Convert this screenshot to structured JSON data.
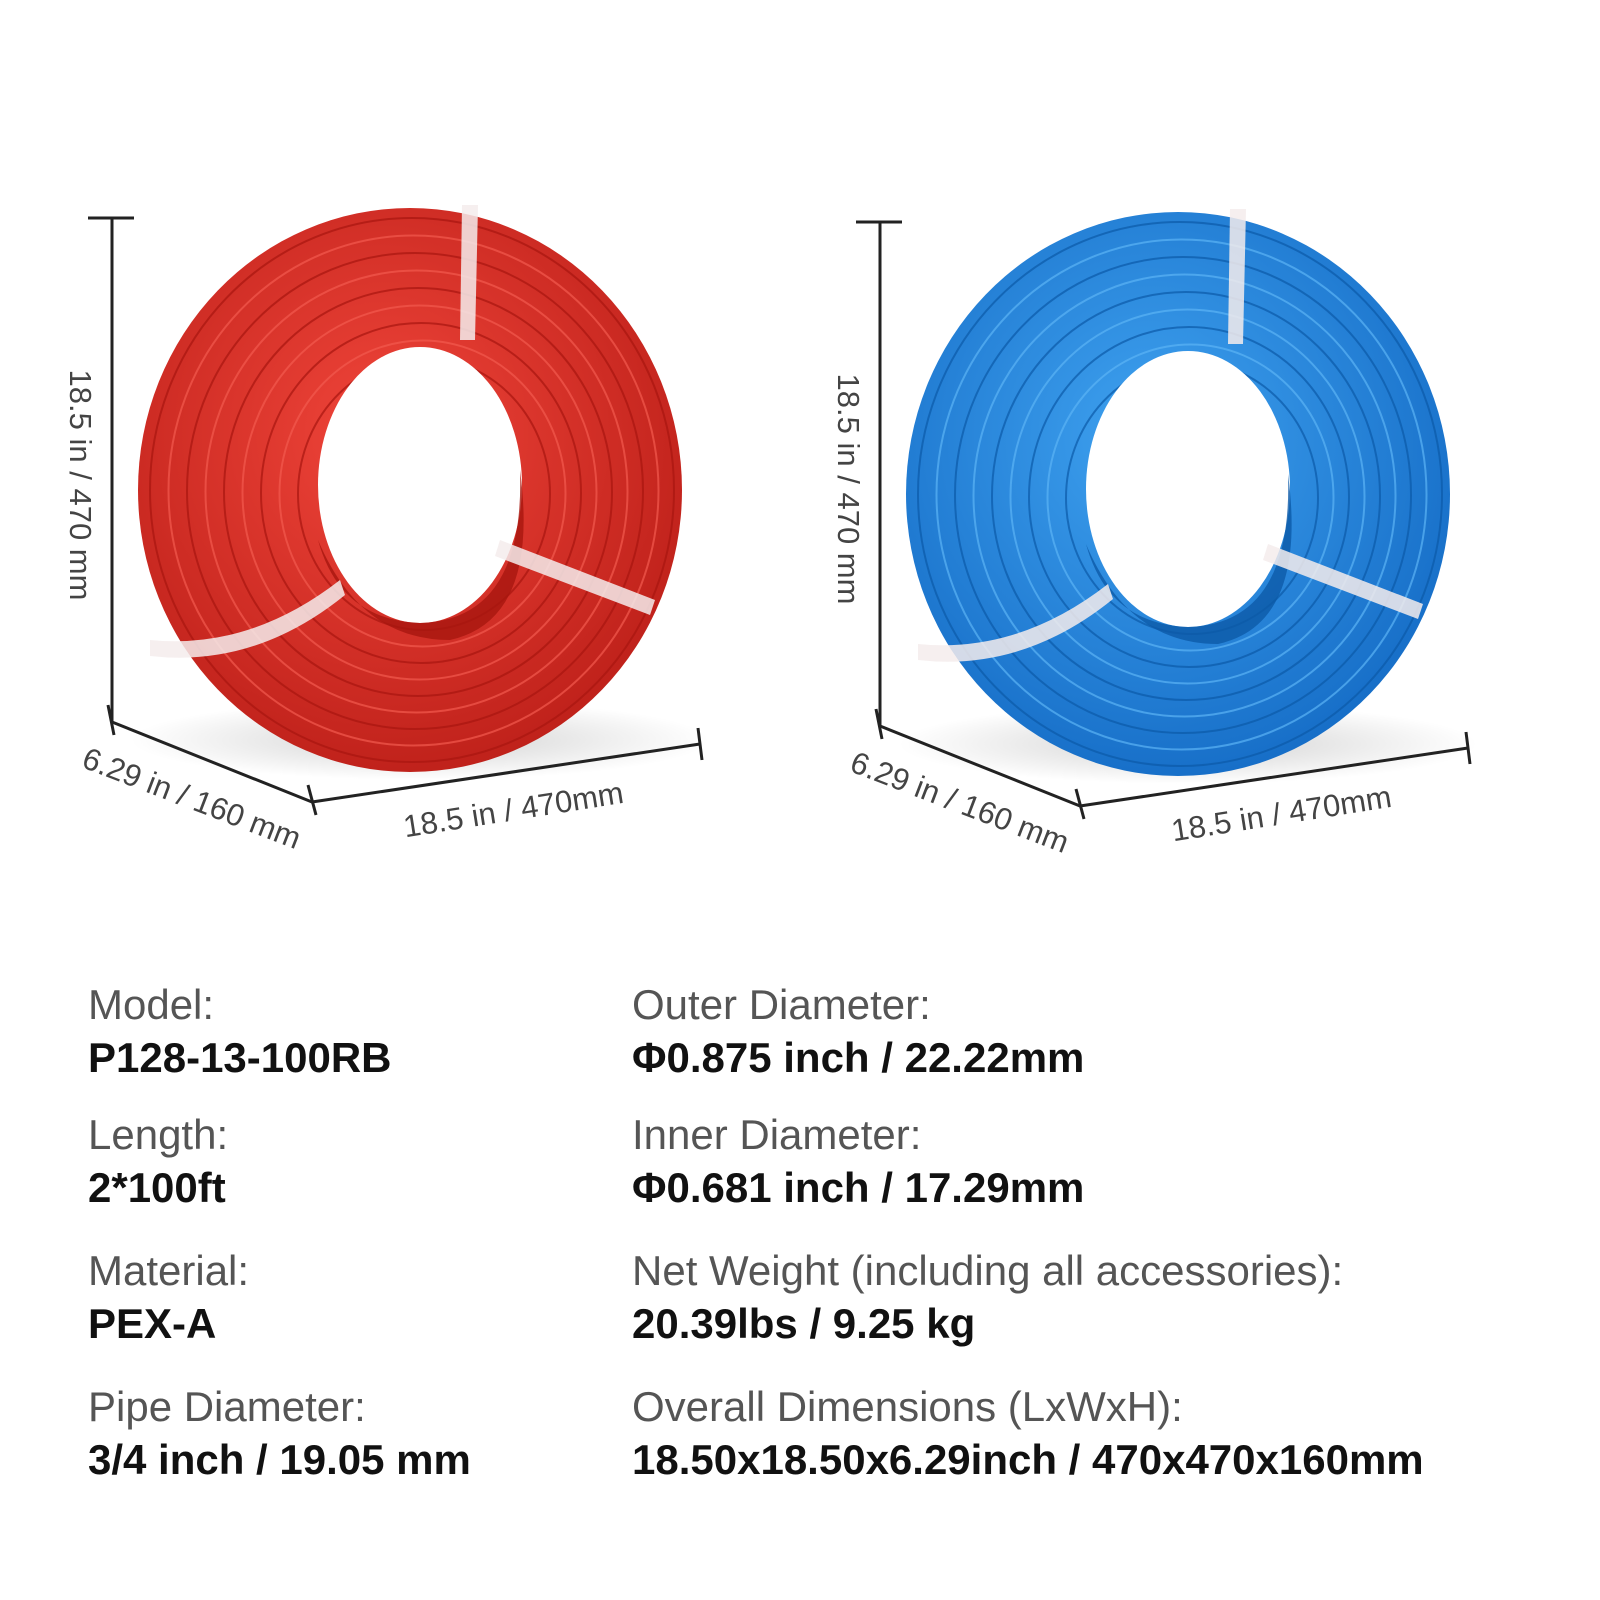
{
  "coils": [
    {
      "height": "18.5 in / 470 mm",
      "depth": "6.29 in / 160 mm",
      "width": "18.5 in / 470mm"
    },
    {
      "height": "18.5 in / 470 mm",
      "depth": "6.29 in / 160 mm",
      "width": "18.5 in / 470mm"
    }
  ],
  "specs": [
    {
      "label": "Model:",
      "value": "P128-13-100RB"
    },
    {
      "label": "Length:",
      "value": "2*100ft"
    },
    {
      "label": "Material:",
      "value": "PEX-A"
    },
    {
      "label": "Pipe Diameter:",
      "value": "3/4 inch / 19.05 mm"
    },
    {
      "label": "Outer Diameter:",
      "value": "Φ0.875 inch / 22.22mm"
    },
    {
      "label": "Inner Diameter:",
      "value": "Φ0.681 inch / 17.29mm"
    },
    {
      "label": "Net Weight (including all accessories):",
      "value": "20.39lbs / 9.25  kg"
    },
    {
      "label": "Overall Dimensions (LxWxH):",
      "value": "18.50x18.50x6.29inch / 470x470x160mm"
    }
  ]
}
